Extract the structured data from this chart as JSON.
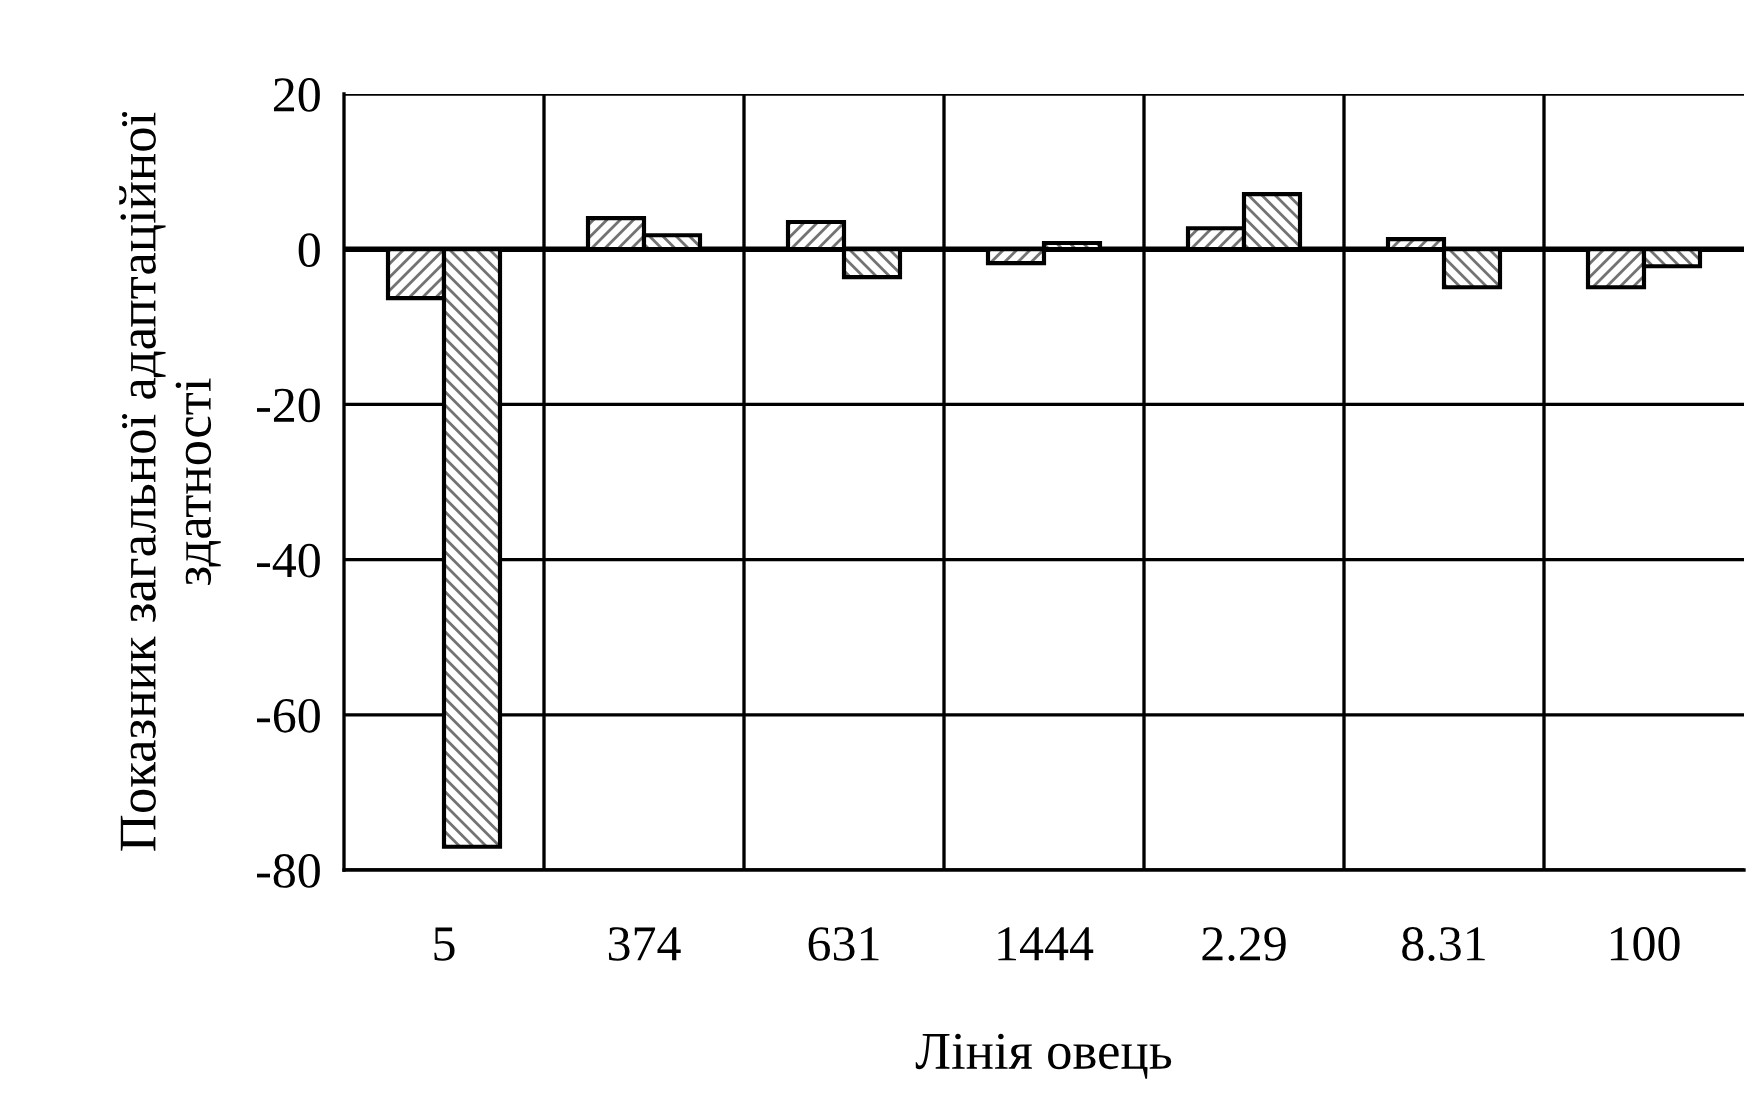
{
  "chart_data": {
    "type": "bar",
    "xlabel": "Лінія овець",
    "ylabel": "Показник загальної адаптаційної\nздатності",
    "categories": [
      "5",
      "374",
      "631",
      "1444",
      "2.29",
      "8.31",
      "100"
    ],
    "series": [
      {
        "color": "#000000",
        "values": [
          -6.3,
          4.0,
          3.5,
          -1.8,
          2.7,
          1.3,
          -4.9
        ]
      },
      {
        "color": "#000000",
        "values": [
          -77.0,
          1.8,
          -3.6,
          0.8,
          7.1,
          -4.9,
          -2.2
        ]
      }
    ],
    "ylim": [
      -80,
      20
    ],
    "yticks": [
      -80,
      -60,
      -40,
      -20,
      0,
      20
    ],
    "grid": true
  }
}
